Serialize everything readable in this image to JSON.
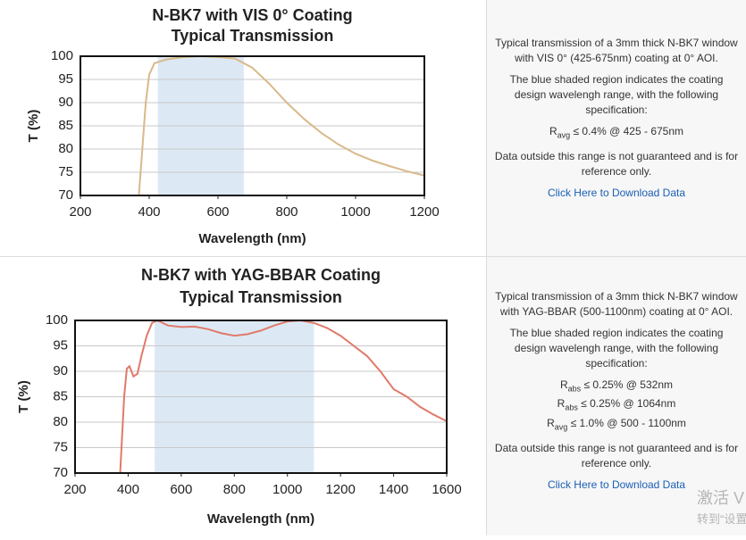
{
  "chart_data": [
    {
      "type": "line",
      "title": "N-BK7 with VIS 0° Coating",
      "subtitle": "Typical Transmission",
      "x_label": "Wavelength (nm)",
      "y_label": "T (%)",
      "x": [
        370,
        380,
        390,
        400,
        415,
        450,
        500,
        550,
        600,
        650,
        700,
        750,
        800,
        850,
        900,
        950,
        1000,
        1050,
        1100,
        1150,
        1200
      ],
      "values": [
        70,
        80,
        90,
        96,
        98.5,
        99.3,
        99.8,
        100,
        99.8,
        99.5,
        97.5,
        94,
        90,
        86.5,
        83.5,
        81,
        79,
        77.5,
        76.3,
        75.2,
        74.3
      ],
      "color": "#d9b98a",
      "shaded_range": [
        425,
        675
      ],
      "shade_color": "#dce9f5",
      "xlim": [
        200,
        1200
      ],
      "ylim": [
        70,
        100
      ],
      "xticks": [
        200,
        400,
        600,
        800,
        1000,
        1200
      ],
      "yticks": [
        70,
        75,
        80,
        85,
        90,
        95,
        100
      ],
      "grid": true
    },
    {
      "type": "line",
      "title": "N-BK7 with YAG-BBAR Coating",
      "subtitle": "Typical Transmission",
      "x_label": "Wavelength (nm)",
      "y_label": "T (%)",
      "x": [
        370,
        385,
        395,
        405,
        420,
        435,
        450,
        470,
        490,
        510,
        550,
        600,
        650,
        700,
        750,
        800,
        850,
        900,
        950,
        1000,
        1050,
        1100,
        1150,
        1200,
        1250,
        1300,
        1350,
        1400,
        1450,
        1500,
        1550,
        1600
      ],
      "values": [
        70,
        85,
        90.5,
        91,
        89,
        89.5,
        93,
        97,
        99.5,
        100,
        99,
        98.7,
        98.8,
        98.3,
        97.5,
        97,
        97.3,
        98,
        99,
        99.8,
        100,
        99.5,
        98.5,
        97,
        95,
        93,
        90,
        86.5,
        85,
        83,
        81.5,
        80.2
      ],
      "color": "#e07a6a",
      "shaded_range": [
        500,
        1100
      ],
      "shade_color": "#dce9f5",
      "xlim": [
        200,
        1600
      ],
      "ylim": [
        70,
        100
      ],
      "xticks": [
        200,
        400,
        600,
        800,
        1000,
        1200,
        1400,
        1600
      ],
      "yticks": [
        70,
        75,
        80,
        85,
        90,
        95,
        100
      ],
      "grid": true
    }
  ],
  "panels": [
    {
      "intro": "Typical transmission of a 3mm thick N-BK7 window with VIS 0° (425-675nm) coating at 0° AOI.",
      "shading_note": "The blue shaded region indicates the coating design wavelengh range, with the following specification:",
      "specs": [
        {
          "symbol": "R",
          "subscript": "avg",
          "text": "≤ 0.4% @ 425 - 675nm"
        }
      ],
      "disclaimer": "Data outside this range is not guaranteed and is for reference only.",
      "link": "Click Here to Download Data"
    },
    {
      "intro": "Typical transmission of a 3mm thick N-BK7 window with YAG-BBAR (500-1100nm) coating at 0° AOI.",
      "shading_note": "The blue shaded region indicates the coating design wavelengh range, with the following specification:",
      "specs": [
        {
          "symbol": "R",
          "subscript": "abs",
          "text": "≤ 0.25% @ 532nm"
        },
        {
          "symbol": "R",
          "subscript": "abs",
          "text": "≤ 0.25% @ 1064nm"
        },
        {
          "symbol": "R",
          "subscript": "avg",
          "text": "≤ 1.0% @ 500 - 1100nm"
        }
      ],
      "disclaimer": "Data outside this range is not guaranteed and is for reference only.",
      "link": "Click Here to Download Data"
    }
  ],
  "overlay": [
    "激活 V",
    "转到“设置"
  ]
}
